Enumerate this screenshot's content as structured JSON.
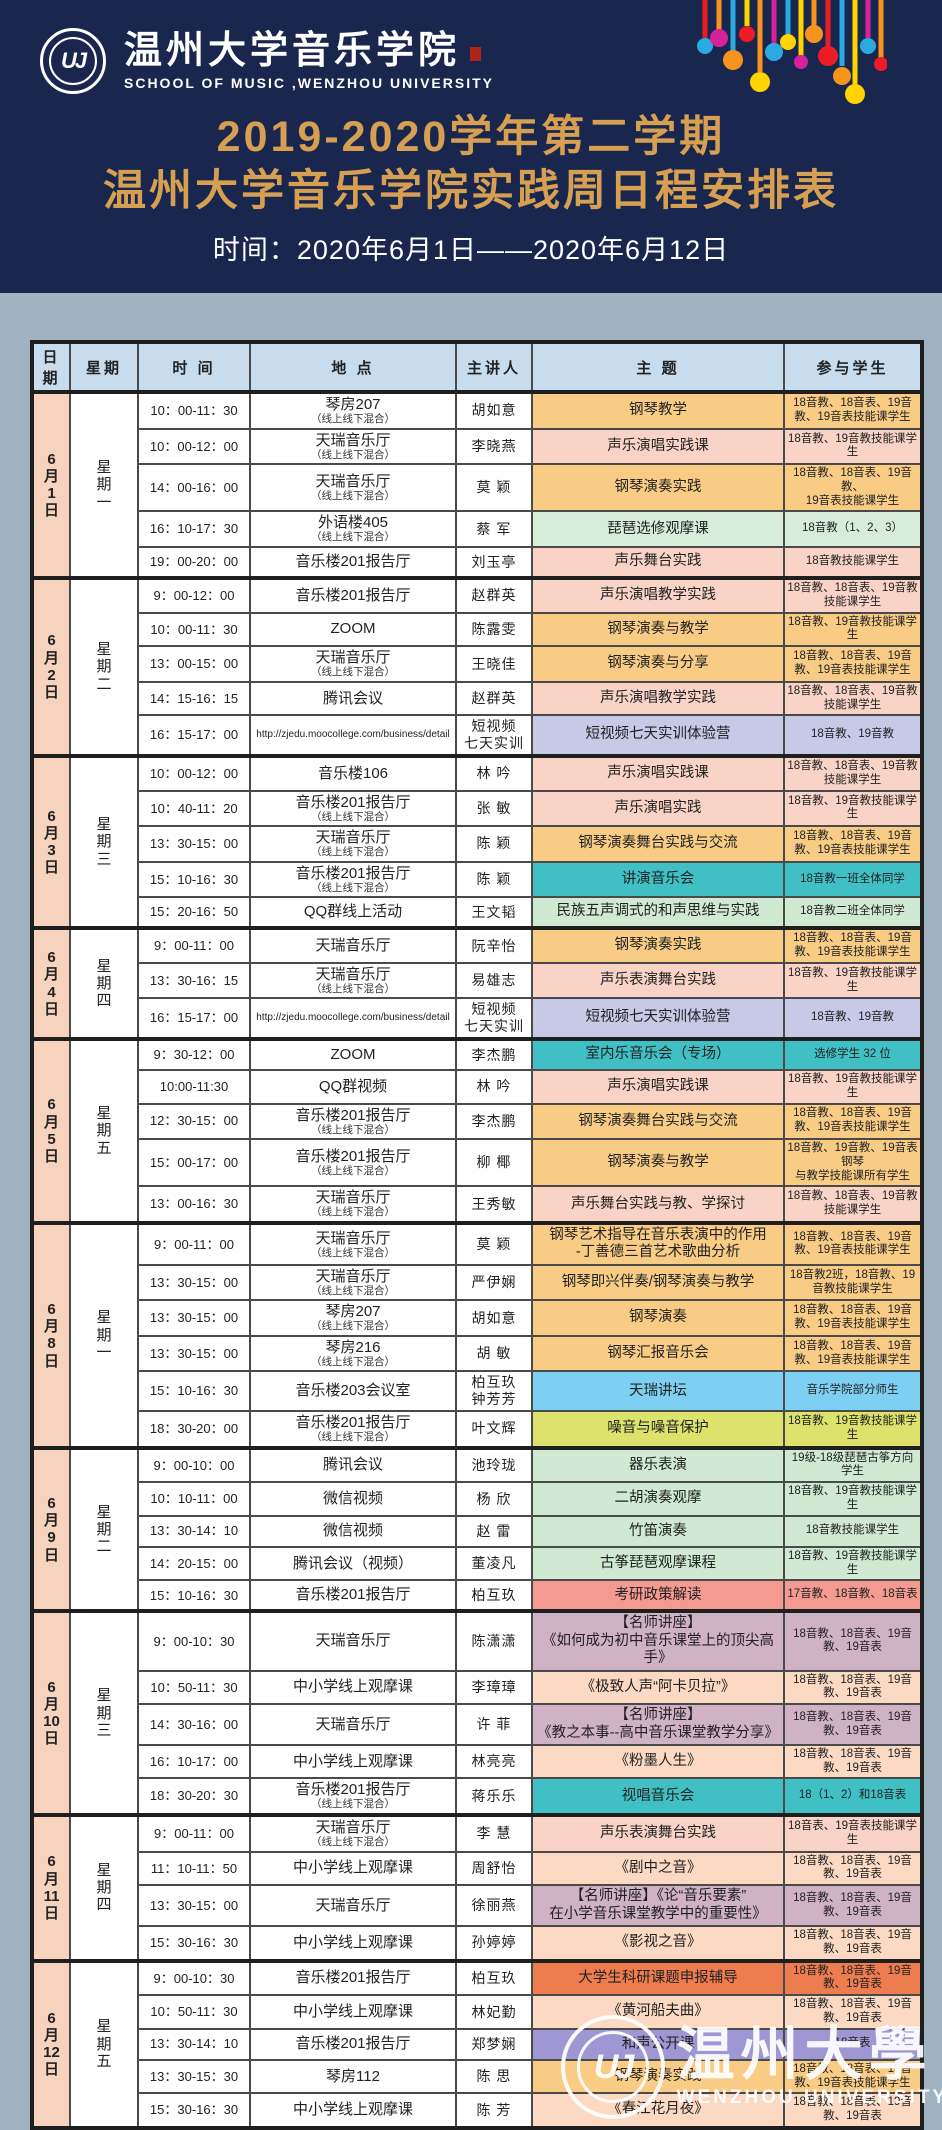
{
  "header": {
    "school_name_cn": "温州大学音乐学院",
    "school_name_en": "SCHOOL OF MUSIC ,WENZHOU UNIVERSITY",
    "seal_monogram": "UJ",
    "title_line1": "2019-2020学年第二学期",
    "title_line2": "温州大学音乐学院实践周日程安排表",
    "date_range": "时间：2020年6月1日——2020年6月12日"
  },
  "colors": {
    "banner_bg": "#19274e",
    "title_gold": "#d79f52",
    "page_bg": "#9fb3c1",
    "header_cell": "#c7dcec",
    "date_cell": "#f7d2bd",
    "piano_orange": "#f9cc85",
    "vocal_pink": "#f8d3c6",
    "pipa_green": "#d7ecd9",
    "video_lavender": "#c7c9e6",
    "concert_teal": "#40c0c5",
    "instrument_lightgreen": "#cfe9d2",
    "forum_blue": "#7ed0f2",
    "noise_yellowgreen": "#dce26b",
    "policy_salmon": "#f49a90",
    "lecture_mauve": "#cfb2c3",
    "lesson_peach": "#fbd9c2",
    "research_orangered": "#ed7c4f",
    "harmony_purple": "#9e97d3"
  },
  "table": {
    "columns": [
      "日期",
      "星期",
      "时  间",
      "地  点",
      "主讲人",
      "主  题",
      "参与学生"
    ],
    "groups": [
      {
        "date": "6月1日",
        "weekday": "星期一",
        "rows": [
          {
            "time": "10：00-11：30",
            "place": "琴房207",
            "note": "（线上线下混合）",
            "speaker": "胡如意",
            "topic": "钢琴教学",
            "students": "18音教、18音表、19音教、19音表技能课学生",
            "color": "orange"
          },
          {
            "time": "10：00-12：00",
            "place": "天瑞音乐厅",
            "note": "（线上线下混合）",
            "speaker": "李晓燕",
            "topic": "声乐演唱实践课",
            "students": "18音教、19音教技能课学生",
            "color": "pink"
          },
          {
            "time": "14：00-16：00",
            "place": "天瑞音乐厅",
            "note": "（线上线下混合）",
            "speaker": "莫 颖",
            "topic": "钢琴演奏实践",
            "students": "18音教、18音表、19音教、\n19音表技能课学生",
            "color": "orange"
          },
          {
            "time": "16：10-17：30",
            "place": "外语楼405",
            "note": "（线上线下混合）",
            "speaker": "蔡 军",
            "topic": "琵琶选修观摩课",
            "students": "18音教（1、2、3）",
            "color": "green"
          },
          {
            "time": "19：00-20：00",
            "place": "音乐楼201报告厅",
            "note": "",
            "speaker": "刘玉亭",
            "topic": "声乐舞台实践",
            "students": "18音教技能课学生",
            "color": "pink"
          }
        ]
      },
      {
        "date": "6月2日",
        "weekday": "星期二",
        "rows": [
          {
            "time": "9：00-12：00",
            "place": "音乐楼201报告厅",
            "note": "",
            "speaker": "赵群英",
            "topic": "声乐演唱教学实践",
            "students": "18音教、18音表、19音教技能课学生",
            "color": "pink"
          },
          {
            "time": "10：00-11：30",
            "place": "ZOOM",
            "note": "",
            "speaker": "陈露雯",
            "topic": "钢琴演奏与教学",
            "students": "18音教、19音教技能课学生",
            "color": "orange"
          },
          {
            "time": "13：00-15：00",
            "place": "天瑞音乐厅",
            "note": "（线上线下混合）",
            "speaker": "王晓佳",
            "topic": "钢琴演奏与分享",
            "students": "18音教、18音表、19音教、19音表技能课学生",
            "color": "orange"
          },
          {
            "time": "14：15-16：15",
            "place": "腾讯会议",
            "note": "",
            "speaker": "赵群英",
            "topic": "声乐演唱教学实践",
            "students": "18音教、18音表、19音教技能课学生",
            "color": "pink"
          },
          {
            "time": "16：15-17：00",
            "place": "http://zjedu.moocollege.com/business/detail",
            "note": "",
            "speaker": "短视频\n七天实训",
            "topic": "短视频七天实训体验营",
            "students": "18音教、19音教",
            "color": "lav"
          }
        ]
      },
      {
        "date": "6月3日",
        "weekday": "星期三",
        "rows": [
          {
            "time": "10：00-12：00",
            "place": "音乐楼106",
            "note": "",
            "speaker": "林 吟",
            "topic": "声乐演唱实践课",
            "students": "18音教、18音表、19音教技能课学生",
            "color": "pink"
          },
          {
            "time": "10：40-11：20",
            "place": "音乐楼201报告厅",
            "note": "（线上线下混合）",
            "speaker": "张 敏",
            "topic": "声乐演唱实践",
            "students": "18音教、19音教技能课学生",
            "color": "pink"
          },
          {
            "time": "13：30-15：00",
            "place": "天瑞音乐厅",
            "note": "（线上线下混合）",
            "speaker": "陈 颖",
            "topic": "钢琴演奏舞台实践与交流",
            "students": "18音教、18音表、19音教、19音表技能课学生",
            "color": "orange"
          },
          {
            "time": "15：10-16：30",
            "place": "音乐楼201报告厅",
            "note": "（线上线下混合）",
            "speaker": "陈 颖",
            "topic": "讲演音乐会",
            "students": "18音教一班全体同学",
            "color": "teal"
          },
          {
            "time": "15：20-16：50",
            "place": "QQ群线上活动",
            "note": "",
            "speaker": "王文韬",
            "topic": "民族五声调式的和声思维与实践",
            "students": "18音教二班全体同学",
            "color": "lgreen"
          }
        ]
      },
      {
        "date": "6月4日",
        "weekday": "星期四",
        "rows": [
          {
            "time": "9：00-11：00",
            "place": "天瑞音乐厅",
            "note": "",
            "speaker": "阮辛怡",
            "topic": "钢琴演奏实践",
            "students": "18音教、18音表、19音教、19音表技能课学生",
            "color": "orange"
          },
          {
            "time": "13：30-16：15",
            "place": "天瑞音乐厅",
            "note": "（线上线下混合）",
            "speaker": "易雄志",
            "topic": "声乐表演舞台实践",
            "students": "18音教、19音教技能课学生",
            "color": "pink"
          },
          {
            "time": "16：15-17：00",
            "place": "http://zjedu.moocollege.com/business/detail",
            "note": "",
            "speaker": "短视频\n七天实训",
            "topic": "短视频七天实训体验营",
            "students": "18音教、19音教",
            "color": "lav"
          }
        ]
      },
      {
        "date": "6月5日",
        "weekday": "星期五",
        "rows": [
          {
            "time": "9：30-12：00",
            "place": "ZOOM",
            "note": "",
            "speaker": "李杰鹏",
            "topic": "室内乐音乐会（专场）",
            "students": "选修学生 32 位",
            "color": "teal"
          },
          {
            "time": "10:00-11:30",
            "place": "QQ群视频",
            "note": "",
            "speaker": "林 吟",
            "topic": "声乐演唱实践课",
            "students": "18音教、19音教技能课学生",
            "color": "pink"
          },
          {
            "time": "12：30-15：00",
            "place": "音乐楼201报告厅",
            "note": "（线上线下混合）",
            "speaker": "李杰鹏",
            "topic": "钢琴演奏舞台实践与交流",
            "students": "18音教、18音表、19音教、19音表技能课学生",
            "color": "orange"
          },
          {
            "time": "15：00-17：00",
            "place": "音乐楼201报告厅",
            "note": "（线上线下混合）",
            "speaker": "柳 椰",
            "topic": "钢琴演奏与教学",
            "students": "18音教、19音教、19音表钢琴\n与教学技能课所有学生",
            "color": "orange"
          },
          {
            "time": "13：00-16：30",
            "place": "天瑞音乐厅",
            "note": "（线上线下混合）",
            "speaker": "王秀敏",
            "topic": "声乐舞台实践与教、学探讨",
            "students": "18音教、18音表、19音教技能课学生",
            "color": "pink"
          }
        ]
      },
      {
        "date": "6月8日",
        "weekday": "星期一",
        "rows": [
          {
            "time": "9：00-11：00",
            "place": "天瑞音乐厅",
            "note": "（线上线下混合）",
            "speaker": "莫 颖",
            "topic": "钢琴艺术指导在音乐表演中的作用\n-丁善德三首艺术歌曲分析",
            "students": "18音教、18音表、19音教、19音表技能课学生",
            "color": "orange"
          },
          {
            "time": "13：30-15：00",
            "place": "天瑞音乐厅",
            "note": "（线上线下混合）",
            "speaker": "严伊娴",
            "topic": "钢琴即兴伴奏/钢琴演奏与教学",
            "students": "18音教2班，18音教、19音教技能课学生",
            "color": "orange"
          },
          {
            "time": "13：30-15：00",
            "place": "琴房207",
            "note": "（线上线下混合）",
            "speaker": "胡如意",
            "topic": "钢琴演奏",
            "students": "18音教、18音表、19音教、19音表技能课学生",
            "color": "orange"
          },
          {
            "time": "13：30-15：00",
            "place": "琴房216",
            "note": "（线上线下混合）",
            "speaker": "胡 敏",
            "topic": "钢琴汇报音乐会",
            "students": "18音教、18音表、19音教、19音表技能课学生",
            "color": "orange"
          },
          {
            "time": "15：10-16：30",
            "place": "音乐楼203会议室",
            "note": "",
            "speaker": "柏互玖\n钟芳芳",
            "topic": "天瑞讲坛",
            "students": "音乐学院部分师生",
            "color": "blue"
          },
          {
            "time": "18：30-20：00",
            "place": "音乐楼201报告厅",
            "note": "（线上线下混合）",
            "speaker": "叶文辉",
            "topic": "噪音与噪音保护",
            "students": "18音教、19音教技能课学生",
            "color": "ygreen"
          }
        ]
      },
      {
        "date": "6月9日",
        "weekday": "星期二",
        "rows": [
          {
            "time": "9：00-10：00",
            "place": "腾讯会议",
            "note": "",
            "speaker": "池玲珑",
            "topic": "器乐表演",
            "students": "19级-18级琵琶古筝方向学生",
            "color": "lgreen"
          },
          {
            "time": "10：10-11：00",
            "place": "微信视频",
            "note": "",
            "speaker": "杨 欣",
            "topic": "二胡演奏观摩",
            "students": "18音教、19音教技能课学生",
            "color": "lgreen"
          },
          {
            "time": "13：30-14：10",
            "place": "微信视频",
            "note": "",
            "speaker": "赵 雷",
            "topic": "竹笛演奏",
            "students": "18音教技能课学生",
            "color": "lgreen"
          },
          {
            "time": "14：20-15：00",
            "place": "腾讯会议（视频）",
            "note": "",
            "speaker": "董凌凡",
            "topic": "古筝琵琶观摩课程",
            "students": "18音教、19音教技能课学生",
            "color": "lgreen"
          },
          {
            "time": "15：10-16：30",
            "place": "音乐楼201报告厅",
            "note": "",
            "speaker": "柏互玖",
            "topic": "考研政策解读",
            "students": "17音教、18音教、18音表",
            "color": "salmon"
          }
        ]
      },
      {
        "date": "6月10日",
        "weekday": "星期三",
        "rows": [
          {
            "time": "9：00-10：30",
            "place": "天瑞音乐厅",
            "note": "",
            "speaker": "陈潇潇",
            "topic": "【名师讲座】\n《如何成为初中音乐课堂上的顶尖高手》",
            "students": "18音教、18音表、19音教、19音表",
            "color": "mauve"
          },
          {
            "time": "10：50-11：30",
            "place": "中小学线上观摩课",
            "note": "",
            "speaker": "李璋璋",
            "topic": "《极致人声“阿卡贝拉”》",
            "students": "18音教、18音表、19音教、19音表",
            "color": "peach"
          },
          {
            "time": "14：30-16：00",
            "place": "天瑞音乐厅",
            "note": "",
            "speaker": "许 菲",
            "topic": "【名师讲座】\n《教之本事--高中音乐课堂教学分享》",
            "students": "18音教、18音表、19音教、19音表",
            "color": "mauve"
          },
          {
            "time": "16：10-17：00",
            "place": "中小学线上观摩课",
            "note": "",
            "speaker": "林亮亮",
            "topic": "《粉墨人生》",
            "students": "18音教、18音表、19音教、19音表",
            "color": "peach"
          },
          {
            "time": "18：30-20：30",
            "place": "音乐楼201报告厅",
            "note": "（线上线下混合）",
            "speaker": "蒋乐乐",
            "topic": "视唱音乐会",
            "students": "18（1、2）和18音表",
            "color": "teal"
          }
        ]
      },
      {
        "date": "6月11日",
        "weekday": "星期四",
        "rows": [
          {
            "time": "9：00-11：00",
            "place": "天瑞音乐厅",
            "note": "（线上线下混合）",
            "speaker": "李 慧",
            "topic": "声乐表演舞台实践",
            "students": "18音表、19音表技能课学生",
            "color": "pink"
          },
          {
            "time": "11：10-11：50",
            "place": "中小学线上观摩课",
            "note": "",
            "speaker": "周舒怡",
            "topic": "《剧中之音》",
            "students": "18音教、18音表、19音教、19音表",
            "color": "peach"
          },
          {
            "time": "13：30-15：00",
            "place": "天瑞音乐厅",
            "note": "",
            "speaker": "徐丽燕",
            "topic": "【名师讲座】《论“音乐要素”\n在小学音乐课堂教学中的重要性》",
            "students": "18音教、18音表、19音教、19音表",
            "color": "mauve"
          },
          {
            "time": "15：30-16：30",
            "place": "中小学线上观摩课",
            "note": "",
            "speaker": "孙婷婷",
            "topic": "《影视之音》",
            "students": "18音教、18音表、19音教、19音表",
            "color": "peach"
          }
        ]
      },
      {
        "date": "6月12日",
        "weekday": "星期五",
        "rows": [
          {
            "time": "9：00-10：30",
            "place": "音乐楼201报告厅",
            "note": "",
            "speaker": "柏互玖",
            "topic": "大学生科研课题申报辅导",
            "students": "18音教、18音表、19音教、19音表",
            "color": "ored"
          },
          {
            "time": "10：50-11：30",
            "place": "中小学线上观摩课",
            "note": "",
            "speaker": "林妃勤",
            "topic": "《黄河船夫曲》",
            "students": "18音教、18音表、19音教、19音表",
            "color": "peach"
          },
          {
            "time": "13：30-14：10",
            "place": "音乐楼201报告厅",
            "note": "",
            "speaker": "郑梦娴",
            "topic": "和声公开课",
            "students": "18音表",
            "color": "purple"
          },
          {
            "time": "13：30-15：30",
            "place": "琴房112",
            "note": "",
            "speaker": "陈 思",
            "topic": "钢琴演奏实践",
            "students": "18音教、18音表、19音教、19音表技能课学生",
            "color": "orange"
          },
          {
            "time": "15：30-16：30",
            "place": "中小学线上观摩课",
            "note": "",
            "speaker": "陈 芳",
            "topic": "《春江花月夜》",
            "students": "18音教、18音表、19音教、19音表",
            "color": "peach"
          }
        ]
      }
    ]
  },
  "footer": {
    "watermark_cn": "温州大學",
    "watermark_en": "WENZHOU UNIVERSITY",
    "watermark_monogram": "UJ"
  }
}
